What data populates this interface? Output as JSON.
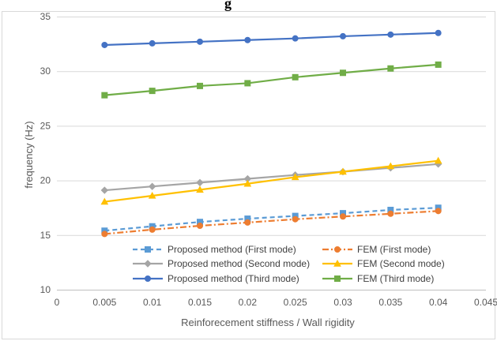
{
  "chart_data": {
    "type": "line",
    "title": "g",
    "xlabel": "Reinforecement stiffness / Wall rigidity",
    "ylabel": "frequency (Hz)",
    "xlim": [
      0,
      0.045
    ],
    "ylim": [
      10,
      35
    ],
    "x_ticks": [
      "0",
      "0.005",
      "0.01",
      "0.015",
      "0.02",
      "0.025",
      "0.03",
      "0.035",
      "0.04",
      "0.045"
    ],
    "y_ticks": [
      "10",
      "15",
      "20",
      "25",
      "30",
      "35"
    ],
    "x": [
      0.005,
      0.01,
      0.015,
      0.02,
      0.025,
      0.03,
      0.035,
      0.04
    ],
    "grid": "horizontal",
    "legend_position": "bottom",
    "series": [
      {
        "name": "Proposed method (First mode)",
        "values": [
          15.4,
          15.8,
          16.2,
          16.5,
          16.75,
          17.0,
          17.3,
          17.5
        ],
        "color": "#5b9bd5",
        "marker": "square",
        "dash": "dashed"
      },
      {
        "name": "FEM (First mode)",
        "values": [
          15.1,
          15.5,
          15.85,
          16.15,
          16.45,
          16.7,
          16.95,
          17.2
        ],
        "color": "#ed7d31",
        "marker": "circle",
        "dash": "dashdot"
      },
      {
        "name": "Proposed method (Second mode)",
        "values": [
          19.1,
          19.45,
          19.8,
          20.15,
          20.5,
          20.8,
          21.15,
          21.5
        ],
        "color": "#a5a5a5",
        "marker": "diamond",
        "dash": "solid"
      },
      {
        "name": "FEM (Second mode)",
        "values": [
          18.05,
          18.6,
          19.15,
          19.7,
          20.3,
          20.8,
          21.3,
          21.8
        ],
        "color": "#ffc000",
        "marker": "triangle",
        "dash": "solid"
      },
      {
        "name": "Proposed method (Third mode)",
        "values": [
          32.4,
          32.55,
          32.7,
          32.85,
          33.0,
          33.2,
          33.35,
          33.5
        ],
        "color": "#4472c4",
        "marker": "circle",
        "dash": "solid"
      },
      {
        "name": "FEM (Third mode)",
        "values": [
          27.8,
          28.2,
          28.65,
          28.9,
          29.45,
          29.85,
          30.25,
          30.6
        ],
        "color": "#70ad47",
        "marker": "square",
        "dash": "solid"
      }
    ]
  }
}
